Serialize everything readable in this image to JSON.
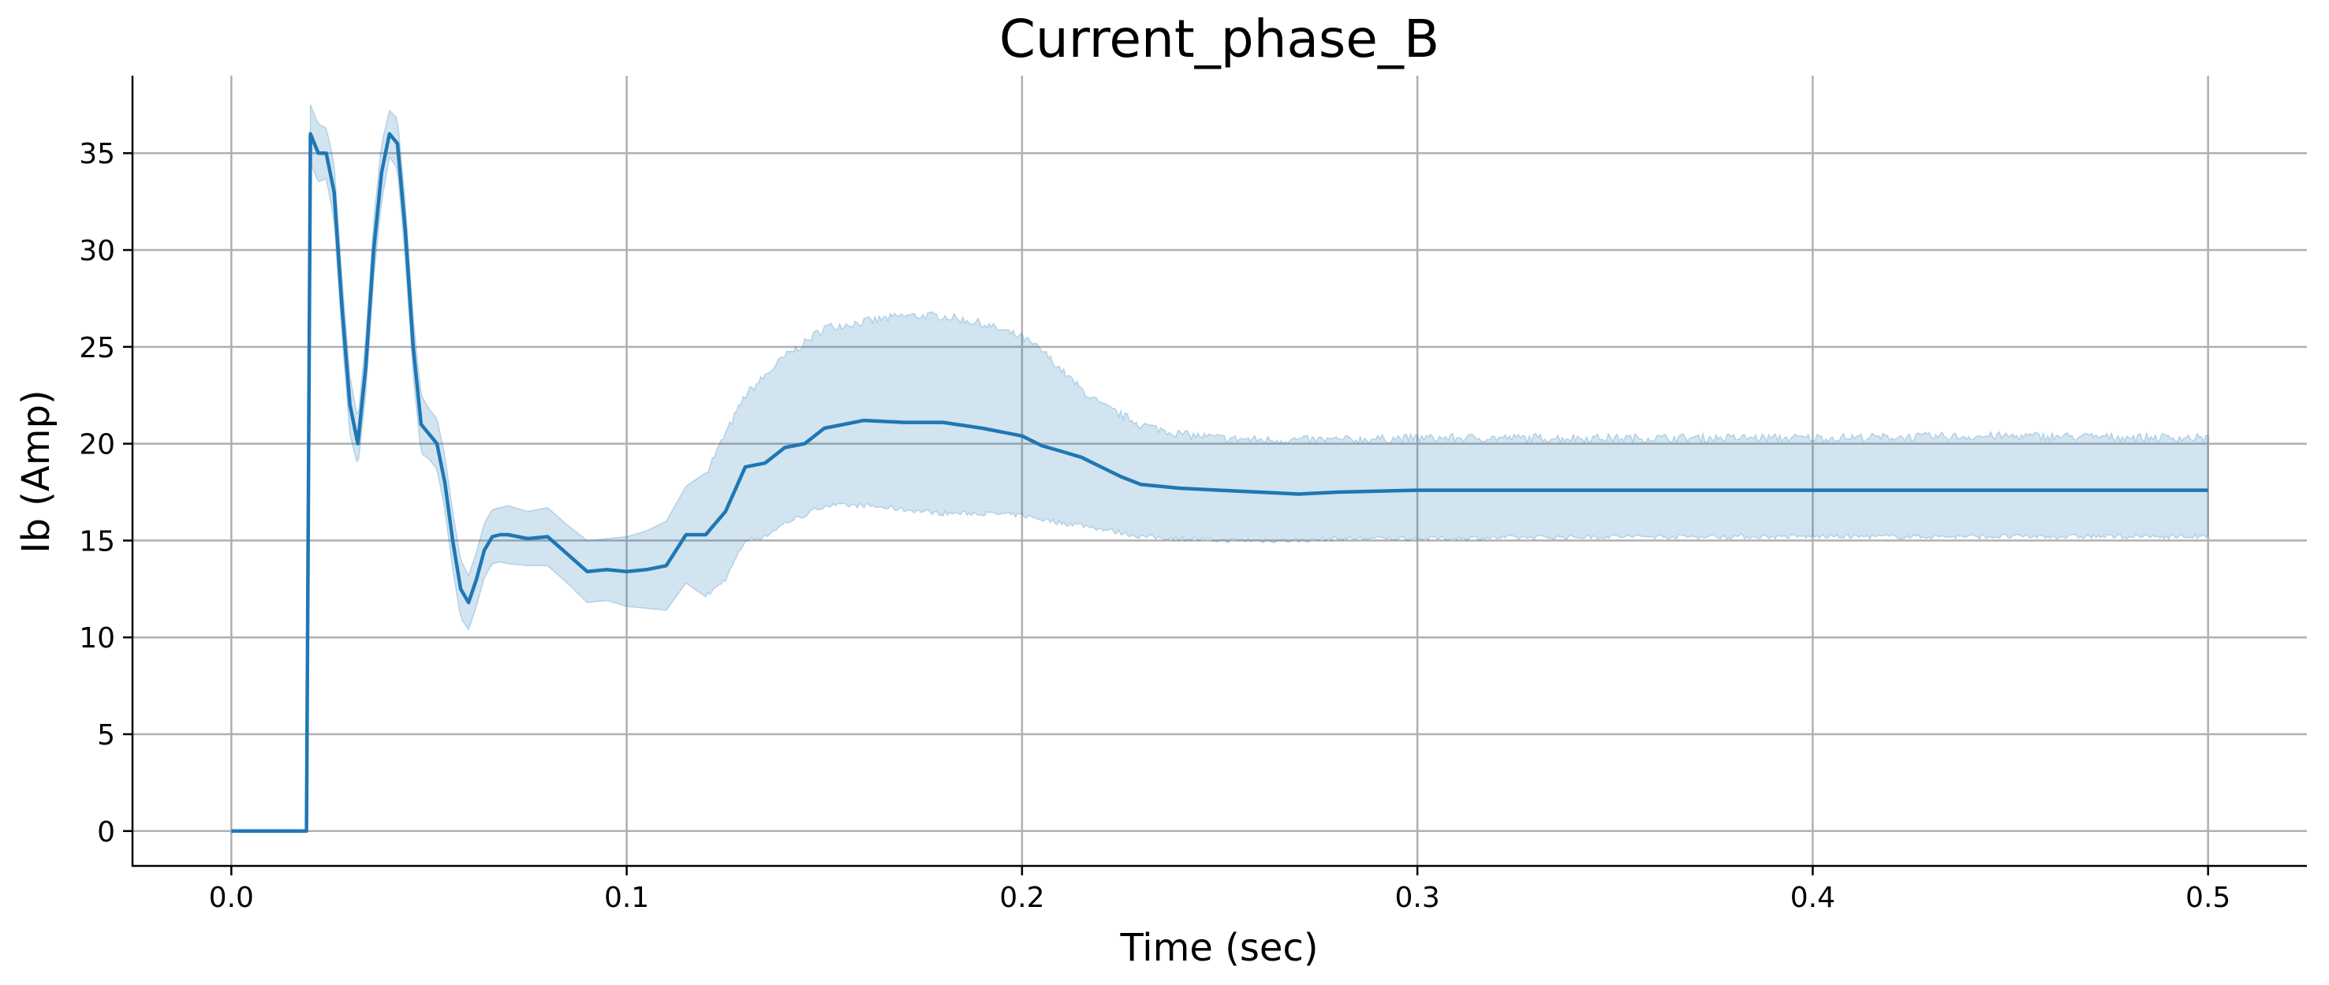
{
  "chart_data": {
    "type": "line",
    "title": "Current_phase_B",
    "xlabel": "Time (sec)",
    "ylabel": "Ib (Amp)",
    "xlim": [
      -0.025,
      0.525
    ],
    "ylim": [
      -1.8,
      39
    ],
    "xticks": [
      0.0,
      0.1,
      0.2,
      0.3,
      0.4,
      0.5
    ],
    "xtick_labels": [
      "0.0",
      "0.1",
      "0.2",
      "0.3",
      "0.4",
      "0.5"
    ],
    "yticks": [
      0,
      5,
      10,
      15,
      20,
      25,
      30,
      35
    ],
    "ytick_labels": [
      "0",
      "5",
      "10",
      "15",
      "20",
      "25",
      "30",
      "35"
    ],
    "grid": true,
    "colors": {
      "line": "#1f77b4",
      "band": "#1f77b4"
    },
    "series": [
      {
        "x": [
          0.0,
          0.019,
          0.0195,
          0.02,
          0.022,
          0.024,
          0.026,
          0.028,
          0.03,
          0.032,
          0.034,
          0.036,
          0.038,
          0.04,
          0.042,
          0.044,
          0.046,
          0.048,
          0.05,
          0.052,
          0.054,
          0.056,
          0.058,
          0.06,
          0.062,
          0.064,
          0.066,
          0.068,
          0.07,
          0.075,
          0.08,
          0.085,
          0.09,
          0.095,
          0.1,
          0.105,
          0.11,
          0.115,
          0.12,
          0.125,
          0.13,
          0.135,
          0.14,
          0.145,
          0.15,
          0.16,
          0.17,
          0.18,
          0.19,
          0.2,
          0.205,
          0.21,
          0.215,
          0.22,
          0.225,
          0.23,
          0.24,
          0.25,
          0.26,
          0.27,
          0.28,
          0.3,
          0.35,
          0.4,
          0.45,
          0.5
        ],
        "y": [
          0,
          0,
          18,
          36,
          35,
          35,
          33,
          27,
          22,
          20,
          24,
          30,
          34,
          36,
          35.5,
          31,
          25,
          21,
          20.5,
          20,
          18,
          15,
          12.5,
          11.8,
          13,
          14.5,
          15.2,
          15.3,
          15.3,
          15.1,
          15.2,
          14.3,
          13.4,
          13.5,
          13.4,
          13.5,
          13.7,
          15.3,
          15.3,
          16.5,
          18.8,
          19,
          19.8,
          20,
          20.8,
          21.2,
          21.1,
          21.1,
          20.8,
          20.4,
          19.9,
          19.6,
          19.3,
          18.8,
          18.3,
          17.9,
          17.7,
          17.6,
          17.5,
          17.4,
          17.5,
          17.6,
          17.6,
          17.6,
          17.6,
          17.6
        ],
        "upper": [
          0,
          0,
          18,
          37.5,
          36.5,
          36.3,
          34.5,
          28.5,
          23.5,
          21.2,
          25.5,
          31.5,
          35.5,
          37.2,
          36.8,
          32.5,
          26.5,
          22.5,
          21.8,
          21.3,
          19.4,
          16.5,
          14,
          13.2,
          14.4,
          15.9,
          16.6,
          16.7,
          16.8,
          16.5,
          16.7,
          15.8,
          15,
          15.1,
          15.2,
          15.5,
          16,
          17.8,
          18.5,
          20.5,
          22.5,
          23.5,
          24.5,
          25.2,
          26,
          26.3,
          26.6,
          26.6,
          26.2,
          25.5,
          24.8,
          23.8,
          22.8,
          22,
          21.5,
          21,
          20.5,
          20.3,
          20.2,
          20.2,
          20.2,
          20.3,
          20.3,
          20.3,
          20.4,
          20.3
        ],
        "lower": [
          0,
          0,
          18,
          34.5,
          33.5,
          33.7,
          31.5,
          25.5,
          20.5,
          18.8,
          22.5,
          28.5,
          32.5,
          34.8,
          34.2,
          29.5,
          23.5,
          19.5,
          19.2,
          18.7,
          16.6,
          13.5,
          11,
          10.4,
          11.6,
          13.1,
          13.8,
          13.9,
          13.8,
          13.7,
          13.7,
          12.8,
          11.8,
          11.9,
          11.6,
          11.5,
          11.4,
          12.8,
          12.1,
          13,
          15,
          15.2,
          15.9,
          16.3,
          16.8,
          16.8,
          16.6,
          16.4,
          16.4,
          16.3,
          16.1,
          15.9,
          15.8,
          15.6,
          15.4,
          15.2,
          15.1,
          15,
          15,
          15,
          15.1,
          15.1,
          15.2,
          15.2,
          15.2,
          15.2
        ]
      }
    ]
  }
}
